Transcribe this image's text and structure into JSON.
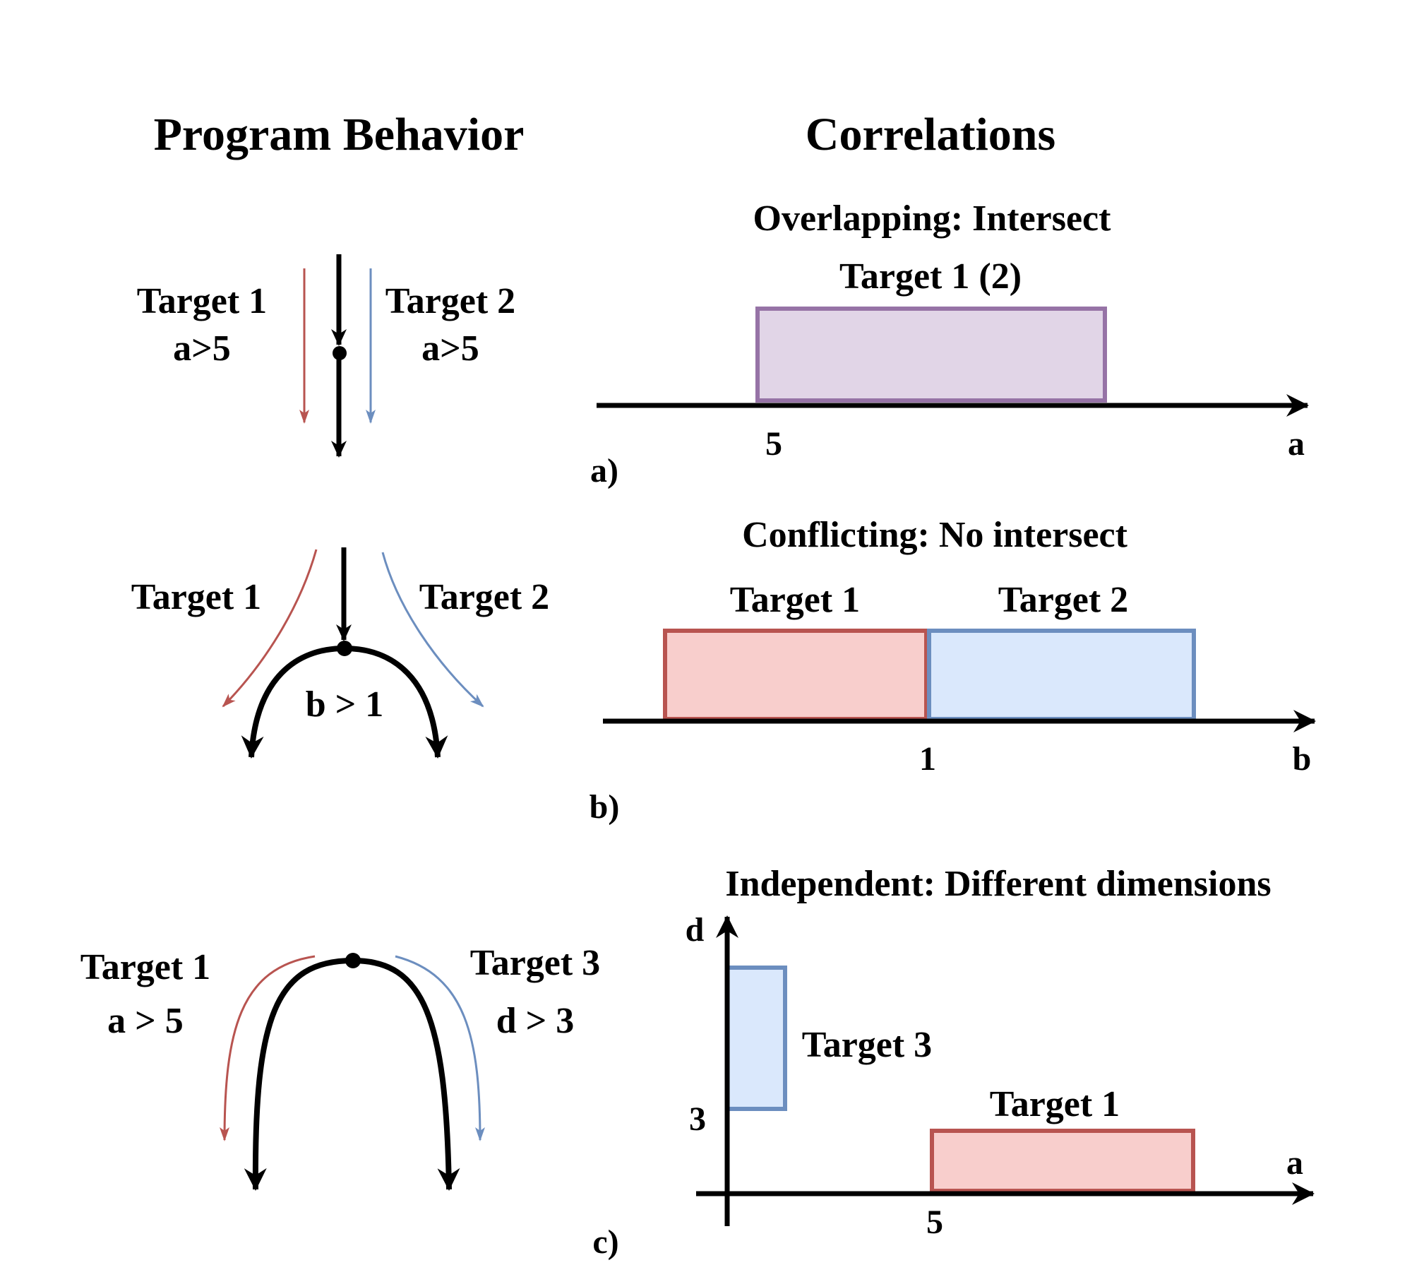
{
  "headings": {
    "program_behavior": "Program Behavior",
    "correlations": "Correlations"
  },
  "colors": {
    "target1_stroke": "#b85450",
    "target1_fill": "#f8cecc",
    "target2_stroke": "#6c8ebf",
    "target2_fill": "#dae8fc",
    "overlap_stroke": "#9673a6",
    "overlap_fill": "#e1d5e7"
  },
  "panel_a": {
    "label": "a)",
    "subtitle": "Overlapping: Intersect",
    "left": {
      "target1": "Target 1",
      "cond1": "a>5",
      "target2": "Target 2",
      "cond2": "a>5"
    },
    "region": {
      "name": "Target 1 (2)",
      "axis": "a",
      "from": 5
    },
    "tick": "5",
    "axis_label": "a"
  },
  "panel_b": {
    "label": "b)",
    "subtitle": "Conflicting: No intersect",
    "left": {
      "target1": "Target 1",
      "target2": "Target 2",
      "cond": "b > 1"
    },
    "region1": {
      "name": "Target 1",
      "axis": "b",
      "to": 1
    },
    "region2": {
      "name": "Target 2",
      "axis": "b",
      "from": 1
    },
    "tick": "1",
    "axis_label": "b"
  },
  "panel_c": {
    "label": "c)",
    "subtitle": "Independent: Different dimensions",
    "left": {
      "target1": "Target 1",
      "cond1": "a > 5",
      "target3": "Target 3",
      "cond3": "d > 3"
    },
    "region_target3": {
      "name": "Target 3",
      "axis": "d",
      "from": 3
    },
    "region_target1": {
      "name": "Target 1",
      "axis": "a",
      "from": 5
    },
    "y_axis_label": "d",
    "x_axis_label": "a",
    "y_tick": "3",
    "x_tick": "5"
  }
}
